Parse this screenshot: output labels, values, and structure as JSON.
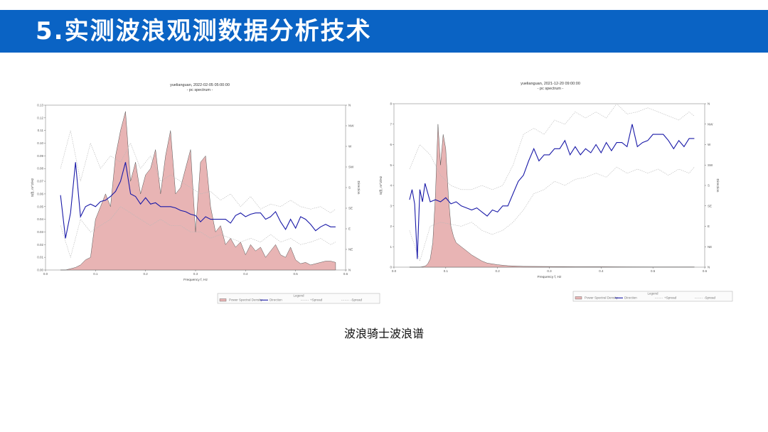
{
  "header": {
    "title": "5.实测波浪观测数据分析技术"
  },
  "caption": "波浪骑士波浪谱",
  "colors": {
    "header": "#0a63c4",
    "psd_fill": "#e8b4b4",
    "psd_line": "#555555",
    "direction": "#1a1aa8",
    "spread": "#b8b8b8"
  },
  "chart_data": [
    {
      "type": "area",
      "title": "yuelianguan, 2022-02-05 05:00:00",
      "subtitle": "- pc spectrum -",
      "xlabel": "Frequency f, Hz",
      "ylabel": "S(f), m^2/Hz",
      "y2label": "Direction",
      "xlim": [
        0,
        0.6
      ],
      "ylim": [
        0,
        0.13
      ],
      "x_ticks": [
        "0.0",
        "0.1",
        "0.2",
        "0.3",
        "0.4",
        "0.5",
        "0.6"
      ],
      "y_ticks": [
        "0.00",
        "0.01",
        "0.02",
        "0.03",
        "0.04",
        "0.05",
        "0.06",
        "0.07",
        "0.08",
        "0.09",
        "0.10",
        "0.11",
        "0.12",
        "0.13"
      ],
      "y2_ticks": [
        "N",
        "NE",
        "E",
        "SE",
        "S",
        "SW",
        "W",
        "NW",
        "N"
      ],
      "legend": {
        "title": "Legend",
        "items": [
          "Power Spectral Density",
          "Direction",
          "+Spread",
          "-Spread"
        ]
      },
      "psd": {
        "x": [
          0.03,
          0.04,
          0.05,
          0.06,
          0.07,
          0.08,
          0.09,
          0.1,
          0.11,
          0.12,
          0.13,
          0.14,
          0.15,
          0.16,
          0.17,
          0.18,
          0.19,
          0.2,
          0.21,
          0.22,
          0.23,
          0.24,
          0.25,
          0.26,
          0.27,
          0.28,
          0.29,
          0.3,
          0.31,
          0.32,
          0.33,
          0.34,
          0.35,
          0.36,
          0.37,
          0.38,
          0.39,
          0.4,
          0.41,
          0.42,
          0.43,
          0.44,
          0.45,
          0.46,
          0.47,
          0.48,
          0.49,
          0.5,
          0.51,
          0.52,
          0.53,
          0.54,
          0.55,
          0.56,
          0.57,
          0.58
        ],
        "y": [
          0,
          0,
          0.001,
          0.002,
          0.004,
          0.008,
          0.01,
          0.04,
          0.05,
          0.06,
          0.05,
          0.09,
          0.11,
          0.125,
          0.07,
          0.085,
          0.06,
          0.075,
          0.08,
          0.095,
          0.06,
          0.09,
          0.11,
          0.06,
          0.065,
          0.08,
          0.095,
          0.03,
          0.085,
          0.09,
          0.05,
          0.03,
          0.035,
          0.02,
          0.025,
          0.018,
          0.022,
          0.012,
          0.02,
          0.015,
          0.018,
          0.01,
          0.015,
          0.02,
          0.012,
          0.01,
          0.018,
          0.008,
          0.005,
          0.006,
          0.004,
          0.005,
          0.006,
          0.007,
          0.007,
          0.006
        ]
      },
      "direction": {
        "x": [
          0.03,
          0.04,
          0.05,
          0.06,
          0.07,
          0.08,
          0.09,
          0.1,
          0.11,
          0.12,
          0.13,
          0.14,
          0.15,
          0.16,
          0.17,
          0.18,
          0.19,
          0.2,
          0.21,
          0.22,
          0.23,
          0.24,
          0.25,
          0.26,
          0.27,
          0.28,
          0.29,
          0.3,
          0.31,
          0.32,
          0.33,
          0.34,
          0.35,
          0.36,
          0.37,
          0.38,
          0.39,
          0.4,
          0.41,
          0.42,
          0.43,
          0.44,
          0.45,
          0.46,
          0.47,
          0.48,
          0.49,
          0.5,
          0.51,
          0.52,
          0.53,
          0.54,
          0.55,
          0.56,
          0.57,
          0.58
        ],
        "y": [
          0.059,
          0.025,
          0.045,
          0.085,
          0.042,
          0.05,
          0.052,
          0.05,
          0.054,
          0.055,
          0.058,
          0.062,
          0.07,
          0.085,
          0.06,
          0.058,
          0.052,
          0.057,
          0.052,
          0.053,
          0.05,
          0.05,
          0.05,
          0.049,
          0.047,
          0.046,
          0.044,
          0.043,
          0.038,
          0.042,
          0.04,
          0.04,
          0.04,
          0.04,
          0.037,
          0.043,
          0.045,
          0.042,
          0.044,
          0.045,
          0.045,
          0.04,
          0.042,
          0.046,
          0.038,
          0.032,
          0.04,
          0.033,
          0.042,
          0.04,
          0.036,
          0.031,
          0.034,
          0.036,
          0.034,
          0.034
        ]
      },
      "spread_plus": {
        "x": [
          0.03,
          0.05,
          0.07,
          0.09,
          0.11,
          0.13,
          0.15,
          0.17,
          0.19,
          0.21,
          0.23,
          0.25,
          0.27,
          0.29,
          0.31,
          0.33,
          0.35,
          0.37,
          0.39,
          0.41,
          0.43,
          0.45,
          0.47,
          0.49,
          0.51,
          0.53,
          0.55,
          0.57,
          0.58
        ],
        "y": [
          0.08,
          0.11,
          0.07,
          0.1,
          0.08,
          0.09,
          0.085,
          0.1,
          0.08,
          0.09,
          0.07,
          0.075,
          0.07,
          0.065,
          0.06,
          0.062,
          0.055,
          0.06,
          0.05,
          0.058,
          0.048,
          0.052,
          0.05,
          0.055,
          0.05,
          0.048,
          0.05,
          0.045,
          0.048
        ]
      },
      "spread_minus": {
        "x": [
          0.03,
          0.05,
          0.07,
          0.09,
          0.11,
          0.13,
          0.15,
          0.17,
          0.19,
          0.21,
          0.23,
          0.25,
          0.27,
          0.29,
          0.31,
          0.33,
          0.35,
          0.37,
          0.39,
          0.41,
          0.43,
          0.45,
          0.47,
          0.49,
          0.51,
          0.53,
          0.55,
          0.57,
          0.58
        ],
        "y": [
          0.035,
          0.01,
          0.04,
          0.03,
          0.035,
          0.04,
          0.05,
          0.045,
          0.04,
          0.035,
          0.04,
          0.035,
          0.035,
          0.03,
          0.03,
          0.025,
          0.028,
          0.025,
          0.022,
          0.025,
          0.022,
          0.028,
          0.022,
          0.025,
          0.02,
          0.022,
          0.025,
          0.02,
          0.022
        ]
      }
    },
    {
      "type": "area",
      "title": "yuelianguan, 2021-12-20 09:00:00",
      "subtitle": "- pc spectrum -",
      "xlabel": "Frequency f, Hz",
      "ylabel": "S(f), m^2/Hz",
      "y2label": "Direction",
      "xlim": [
        0,
        0.6
      ],
      "ylim": [
        0,
        8
      ],
      "x_ticks": [
        "0.0",
        "0.1",
        "0.2",
        "0.3",
        "0.4",
        "0.5",
        "0.6"
      ],
      "y_ticks": [
        "0",
        "1",
        "2",
        "3",
        "4",
        "5",
        "6",
        "7",
        "8"
      ],
      "y2_ticks": [
        "N",
        "NE",
        "E",
        "SE",
        "S",
        "SW",
        "W",
        "NW",
        "N"
      ],
      "legend": {
        "title": "Legend",
        "items": [
          "Power Spectral Density",
          "Direction",
          "+Spread",
          "-Spread"
        ]
      },
      "psd": {
        "x": [
          0.03,
          0.05,
          0.06,
          0.065,
          0.07,
          0.075,
          0.08,
          0.085,
          0.09,
          0.095,
          0.1,
          0.105,
          0.11,
          0.115,
          0.12,
          0.13,
          0.14,
          0.15,
          0.16,
          0.17,
          0.18,
          0.2,
          0.22,
          0.25,
          0.3,
          0.35,
          0.4,
          0.45,
          0.5,
          0.55,
          0.58
        ],
        "y": [
          0,
          0,
          0.05,
          0.15,
          0.4,
          1.2,
          3.5,
          7.0,
          5.0,
          6.5,
          5.8,
          3.5,
          2.0,
          1.5,
          1.2,
          1.0,
          0.8,
          0.6,
          0.45,
          0.3,
          0.2,
          0.12,
          0.07,
          0.04,
          0.03,
          0.02,
          0.02,
          0.015,
          0.01,
          0.01,
          0.01
        ]
      },
      "direction": {
        "x": [
          0.03,
          0.035,
          0.04,
          0.045,
          0.05,
          0.055,
          0.06,
          0.07,
          0.08,
          0.09,
          0.1,
          0.11,
          0.12,
          0.13,
          0.14,
          0.15,
          0.16,
          0.17,
          0.18,
          0.19,
          0.2,
          0.21,
          0.22,
          0.23,
          0.24,
          0.25,
          0.26,
          0.27,
          0.28,
          0.29,
          0.3,
          0.31,
          0.32,
          0.33,
          0.34,
          0.35,
          0.36,
          0.37,
          0.38,
          0.39,
          0.4,
          0.41,
          0.42,
          0.43,
          0.44,
          0.45,
          0.46,
          0.47,
          0.48,
          0.49,
          0.5,
          0.51,
          0.52,
          0.53,
          0.54,
          0.55,
          0.56,
          0.57,
          0.58
        ],
        "y": [
          3.3,
          3.8,
          3.1,
          0.4,
          3.8,
          3.2,
          4.1,
          3.2,
          3.3,
          3.2,
          3.4,
          3.1,
          3.2,
          3.0,
          2.9,
          2.8,
          2.9,
          2.7,
          2.5,
          2.8,
          2.7,
          3.0,
          3.0,
          3.6,
          4.2,
          4.5,
          5.2,
          5.8,
          5.2,
          5.5,
          5.5,
          5.8,
          5.8,
          6.2,
          5.5,
          5.9,
          5.5,
          5.8,
          5.6,
          6.0,
          5.6,
          6.1,
          5.7,
          6.1,
          6.1,
          5.9,
          7.0,
          5.9,
          6.1,
          6.2,
          6.5,
          6.5,
          6.5,
          6.2,
          5.8,
          6.2,
          5.9,
          6.3,
          6.3
        ]
      },
      "spread_plus": {
        "x": [
          0.03,
          0.05,
          0.07,
          0.09,
          0.11,
          0.13,
          0.15,
          0.17,
          0.19,
          0.21,
          0.23,
          0.25,
          0.27,
          0.29,
          0.31,
          0.33,
          0.35,
          0.37,
          0.39,
          0.41,
          0.43,
          0.45,
          0.47,
          0.49,
          0.51,
          0.53,
          0.55,
          0.57,
          0.58
        ],
        "y": [
          4.8,
          6.0,
          5.5,
          4.5,
          4.0,
          3.8,
          3.8,
          4.0,
          3.8,
          4.0,
          5.0,
          6.5,
          6.8,
          6.5,
          7.2,
          7.0,
          7.6,
          7.3,
          7.6,
          7.3,
          8.0,
          7.5,
          7.6,
          7.8,
          7.6,
          7.4,
          7.2,
          7.6,
          7.4
        ]
      },
      "spread_minus": {
        "x": [
          0.03,
          0.05,
          0.07,
          0.09,
          0.11,
          0.13,
          0.15,
          0.17,
          0.19,
          0.21,
          0.23,
          0.25,
          0.27,
          0.29,
          0.31,
          0.33,
          0.35,
          0.37,
          0.39,
          0.41,
          0.43,
          0.45,
          0.47,
          0.49,
          0.51,
          0.53,
          0.55,
          0.57,
          0.58
        ],
        "y": [
          1.8,
          0.3,
          2.0,
          2.2,
          2.1,
          2.0,
          2.2,
          1.8,
          1.6,
          1.8,
          2.2,
          2.8,
          3.6,
          3.8,
          4.2,
          4.0,
          4.3,
          4.4,
          4.6,
          4.4,
          4.9,
          4.6,
          4.8,
          4.6,
          4.8,
          4.5,
          4.8,
          4.6,
          4.9
        ]
      }
    }
  ]
}
